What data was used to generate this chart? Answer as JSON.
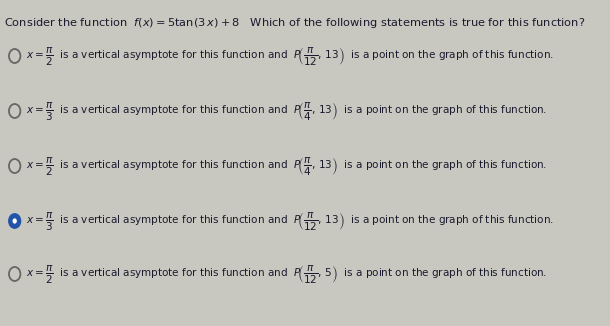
{
  "bg_color": "#c9c8c0",
  "text_color": "#1a1a2e",
  "title_plain": "Consider the function  ",
  "title_math": "$f(x) = 5\\tan(3\\,x) + 8$",
  "title_rest": "  Which of the following statements is true for this function?",
  "radio_unsel_edge": "#666666",
  "radio_sel_face": "#2255aa",
  "radio_sel_edge": "#2255aa",
  "options": [
    {
      "selected": false,
      "asym_denom": "2",
      "point_denom": "12",
      "point_y": "13"
    },
    {
      "selected": false,
      "asym_denom": "3",
      "point_denom": "4",
      "point_y": "13"
    },
    {
      "selected": false,
      "asym_denom": "2",
      "point_denom": "4",
      "point_y": "13"
    },
    {
      "selected": true,
      "asym_denom": "3",
      "point_denom": "12",
      "point_y": "13"
    },
    {
      "selected": false,
      "asym_denom": "2",
      "point_denom": "12",
      "point_y": "5"
    }
  ]
}
